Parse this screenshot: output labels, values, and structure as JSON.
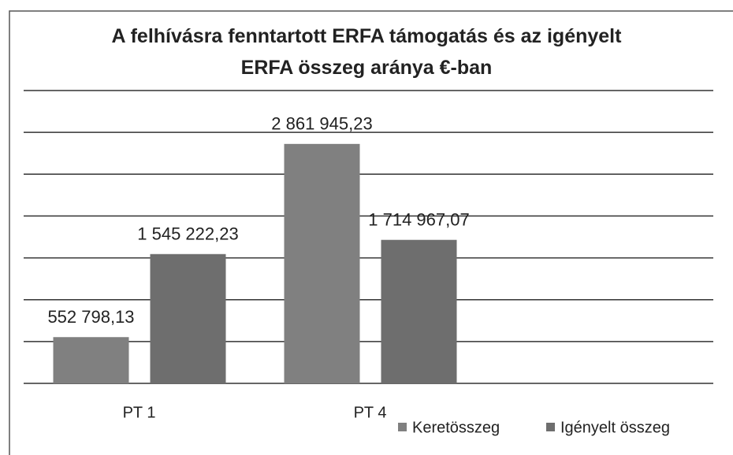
{
  "chart_data": {
    "type": "bar",
    "title": "A felhívásra fenntartott ERFA támogatás és az igényelt ERFA összeg aránya €-ban",
    "categories": [
      "PT 1",
      "PT 4"
    ],
    "series": [
      {
        "name": "Keretösszeg",
        "color": "#808080",
        "values": [
          552798.13,
          2861945.23
        ],
        "value_labels": [
          "552 798,13",
          "2 861 945,23"
        ]
      },
      {
        "name": "Igényelt összeg",
        "color": "#6e6e6e",
        "values": [
          1545222.23,
          1714967.07
        ],
        "value_labels": [
          "1 545 222,23",
          "1 714 967,07"
        ]
      }
    ],
    "ylim": [
      0,
      3500000
    ],
    "yticks": [
      0,
      500000,
      1000000,
      1500000,
      2000000,
      2500000,
      3000000,
      3500000
    ],
    "grid": true
  }
}
